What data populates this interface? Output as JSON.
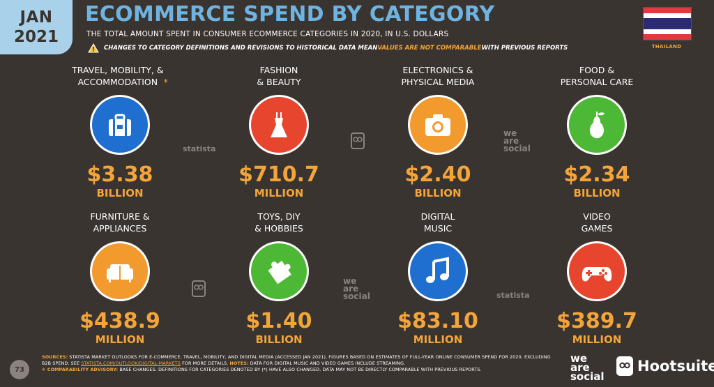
{
  "header": {
    "month": "JAN",
    "year": "2021",
    "title": "ECOMMERCE SPEND BY CATEGORY",
    "subtitle": "THE TOTAL AMOUNT SPENT IN CONSUMER ECOMMERCE CATEGORIES IN 2020, IN U.S. DOLLARS",
    "warning_pre": "CHANGES TO CATEGORY DEFINITIONS AND REVISIONS TO HISTORICAL DATA MEAN ",
    "warning_hl": "VALUES ARE NOT COMPARABLE",
    "warning_post": " WITH PREVIOUS REPORTS",
    "country": "THAILAND"
  },
  "categories": [
    {
      "label": "TRAVEL, MOBILITY, &\nACCOMMODATION",
      "asterisk": "*",
      "value": "$3.38",
      "unit": "BILLION",
      "icon": "luggage-icon",
      "color": "#1f6fd0"
    },
    {
      "label": "FASHION\n& BEAUTY",
      "value": "$710.7",
      "unit": "MILLION",
      "icon": "dress-icon",
      "color": "#e8452f"
    },
    {
      "label": "ELECTRONICS &\nPHYSICAL MEDIA",
      "value": "$2.40",
      "unit": "BILLION",
      "icon": "camera-icon",
      "color": "#f29a2e"
    },
    {
      "label": "FOOD &\nPERSONAL CARE",
      "value": "$2.34",
      "unit": "BILLION",
      "icon": "pear-icon",
      "color": "#4db836"
    },
    {
      "label": "FURNITURE &\nAPPLIANCES",
      "value": "$438.9",
      "unit": "MILLION",
      "icon": "sofa-icon",
      "color": "#f29a2e"
    },
    {
      "label": "TOYS, DIY\n& HOBBIES",
      "value": "$1.40",
      "unit": "BILLION",
      "icon": "puzzle-icon",
      "color": "#4db836"
    },
    {
      "label": "DIGITAL\nMUSIC",
      "value": "$83.10",
      "unit": "MILLION",
      "icon": "music-note-icon",
      "color": "#1f6fd0"
    },
    {
      "label": "VIDEO\nGAMES",
      "value": "$389.7",
      "unit": "MILLION",
      "icon": "gamepad-icon",
      "color": "#e8452f"
    }
  ],
  "watermarks": {
    "statista": "statista",
    "we_are_social": "we\nare\nsocial"
  },
  "footer": {
    "page_number": "73",
    "sources_label": "SOURCES:",
    "sources_text": " STATISTA MARKET OUTLOOKS FOR E-COMMERCE, TRAVEL, MOBILITY, AND DIGITAL MEDIA (ACCESSED JAN 2021). FIGURES BASED ON ESTIMATES OF FULL-YEAR ONLINE CONSUMER SPEND FOR 2020, EXCLUDING B2B SPEND. SEE ",
    "sources_link": "STATISTA.COM/OUTLOOK/DIGITAL-MARKETS",
    "sources_text2": " FOR MORE DETAILS. ",
    "notes_label": "NOTES:",
    "notes_text": " DATA FOR DIGITAL MUSIC AND VIDEO GAMES INCLUDE STREAMING.",
    "advisory_label": "❈ COMPARABILITY ADVISORY:",
    "advisory_text": " BASE CHANGES. DEFINITIONS FOR CATEGORIES DENOTED BY (*) HAVE ALSO CHANGED. DATA MAY NOT BE DIRECTLY COMPARABLE WITH PREVIOUS REPORTS."
  },
  "logos": {
    "we_are_social": "we\nare\nsocial",
    "hootsuite": "Hootsuite"
  }
}
